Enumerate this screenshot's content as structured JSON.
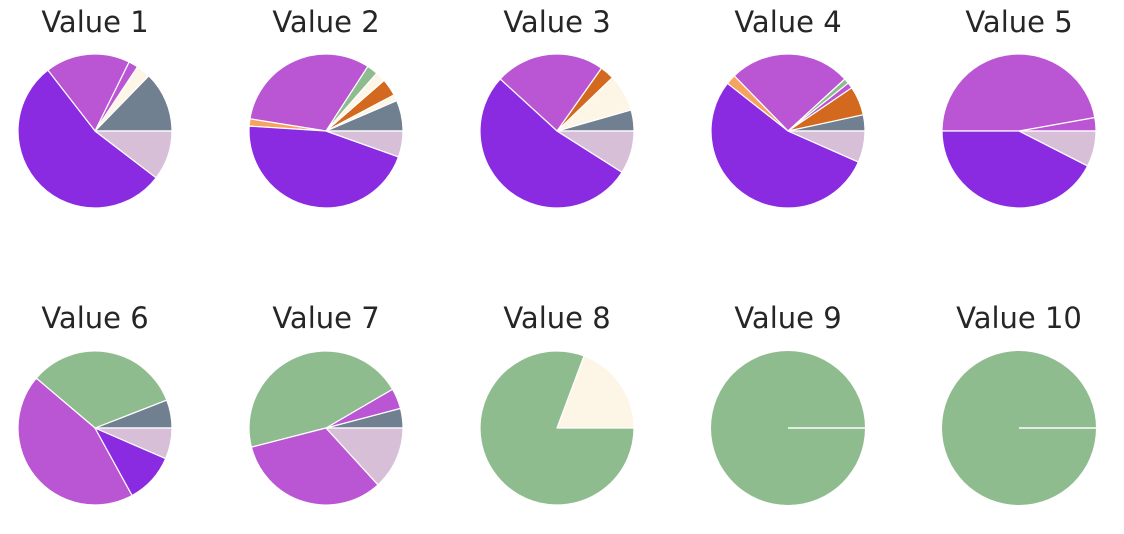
{
  "chart_data": {
    "type": "pie",
    "charts": [
      {
        "title": "Value 1",
        "slices": [
          {
            "value": 12.7,
            "color": "#708090"
          },
          {
            "value": 3.0,
            "color": "#FDF5E6"
          },
          {
            "value": 2.0,
            "color": "#BA55D3"
          },
          {
            "value": 17.8,
            "color": "#BA55D3"
          },
          {
            "value": 54.1,
            "color": "#8A2BE2"
          },
          {
            "value": 10.4,
            "color": "#D8BFD8"
          }
        ]
      },
      {
        "title": "Value 2",
        "slices": [
          {
            "value": 6.4,
            "color": "#708090"
          },
          {
            "value": 1.3,
            "color": "#FDF5E6"
          },
          {
            "value": 3.6,
            "color": "#D2691E"
          },
          {
            "value": 2.1,
            "color": "#FDF5E6"
          },
          {
            "value": 2.3,
            "color": "#8FBC8F"
          },
          {
            "value": 31.3,
            "color": "#BA55D3"
          },
          {
            "value": 1.5,
            "color": "#F4A460"
          },
          {
            "value": 45.1,
            "color": "#8A2BE2"
          },
          {
            "value": 5.4,
            "color": "#D8BFD8"
          }
        ]
      },
      {
        "title": "Value 3",
        "slices": [
          {
            "value": 4.4,
            "color": "#708090"
          },
          {
            "value": 7.8,
            "color": "#FDF5E6"
          },
          {
            "value": 3.0,
            "color": "#D2691E"
          },
          {
            "value": 23.0,
            "color": "#BA55D3"
          },
          {
            "value": 52.8,
            "color": "#8A2BE2"
          },
          {
            "value": 9.0,
            "color": "#D8BFD8"
          }
        ]
      },
      {
        "title": "Value 4",
        "slices": [
          {
            "value": 3.4,
            "color": "#708090"
          },
          {
            "value": 6.1,
            "color": "#D2691E"
          },
          {
            "value": 1.2,
            "color": "#BA55D3"
          },
          {
            "value": 1.1,
            "color": "#8FBC8F"
          },
          {
            "value": 25.5,
            "color": "#BA55D3"
          },
          {
            "value": 2.1,
            "color": "#F4A460"
          },
          {
            "value": 54.0,
            "color": "#8A2BE2"
          },
          {
            "value": 6.6,
            "color": "#D8BFD8"
          }
        ]
      },
      {
        "title": "Value 5",
        "slices": [
          {
            "value": 2.8,
            "color": "#BA55D3"
          },
          {
            "value": 47.2,
            "color": "#BA55D3"
          },
          {
            "value": 42.5,
            "color": "#8A2BE2"
          },
          {
            "value": 7.5,
            "color": "#D8BFD8"
          }
        ]
      },
      {
        "title": "Value 6",
        "slices": [
          {
            "value": 5.9,
            "color": "#708090"
          },
          {
            "value": 32.9,
            "color": "#8FBC8F"
          },
          {
            "value": 44.2,
            "color": "#BA55D3"
          },
          {
            "value": 10.5,
            "color": "#8A2BE2"
          },
          {
            "value": 6.5,
            "color": "#D8BFD8"
          }
        ]
      },
      {
        "title": "Value 7",
        "slices": [
          {
            "value": 4.1,
            "color": "#708090"
          },
          {
            "value": 4.3,
            "color": "#BA55D3"
          },
          {
            "value": 45.6,
            "color": "#8FBC8F"
          },
          {
            "value": 32.8,
            "color": "#BA55D3"
          },
          {
            "value": 13.2,
            "color": "#D8BFD8"
          }
        ]
      },
      {
        "title": "Value 8",
        "slices": [
          {
            "value": 19.3,
            "color": "#FDF5E6"
          },
          {
            "value": 80.7,
            "color": "#8FBC8F"
          }
        ]
      },
      {
        "title": "Value 9",
        "slices": [
          {
            "value": 100,
            "color": "#8FBC8F"
          }
        ]
      },
      {
        "title": "Value 10",
        "slices": [
          {
            "value": 100,
            "color": "#8FBC8F"
          }
        ]
      }
    ]
  }
}
